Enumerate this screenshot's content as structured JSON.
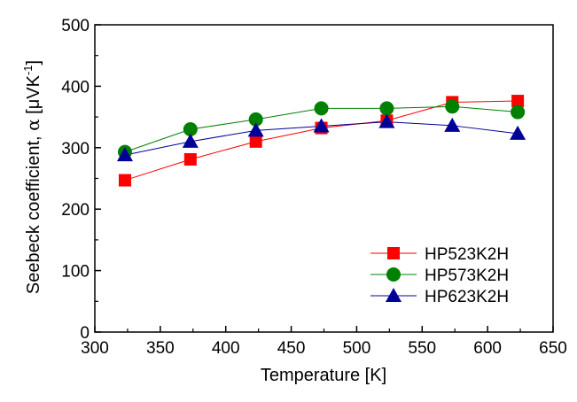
{
  "chart_data": {
    "type": "line",
    "xlabel": "Temperature [K]",
    "ylabel_main": "Seebeck coefficient, ",
    "ylabel_alpha": "α",
    "ylabel_unit_open": " [μVK",
    "ylabel_unit_sup": "-1",
    "ylabel_unit_close": "]",
    "xlim": [
      300,
      650
    ],
    "ylim": [
      0,
      500
    ],
    "xticks": [
      "300",
      "350",
      "400",
      "450",
      "500",
      "550",
      "600",
      "650"
    ],
    "yticks": [
      "0",
      "100",
      "200",
      "300",
      "400",
      "500"
    ],
    "legend_position": "lower-right",
    "grid": false,
    "series": [
      {
        "name": "HP523K2H",
        "marker": "square",
        "color": "#ff0000",
        "x": [
          323,
          373,
          423,
          473,
          523,
          573,
          623
        ],
        "y": [
          247,
          281,
          310,
          332,
          344,
          374,
          376
        ]
      },
      {
        "name": "HP573K2H",
        "marker": "circle",
        "color": "#008000",
        "x": [
          323,
          373,
          423,
          473,
          523,
          573,
          623
        ],
        "y": [
          293,
          330,
          346,
          364,
          364,
          367,
          358
        ]
      },
      {
        "name": "HP623K2H",
        "marker": "triangle",
        "color": "#000099",
        "x": [
          323,
          373,
          423,
          473,
          523,
          573,
          623
        ],
        "y": [
          288,
          310,
          328,
          335,
          342,
          336,
          323
        ]
      }
    ]
  }
}
